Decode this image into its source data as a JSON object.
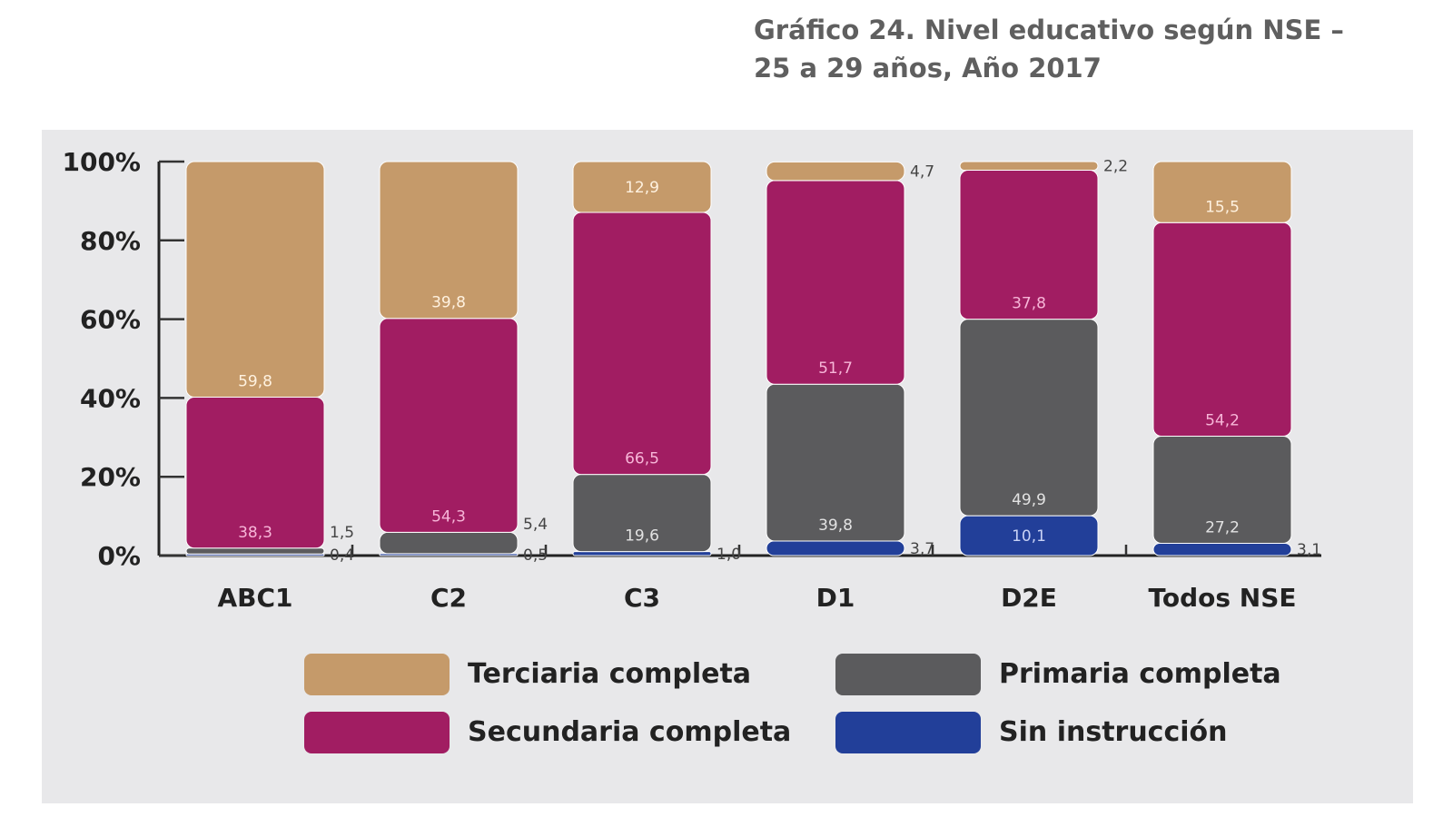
{
  "title_line1": "Gráfico 24. Nivel educativo según NSE –",
  "title_line2": "25 a 29 años, Año 2017",
  "chart_data": {
    "type": "bar",
    "stacked": true,
    "title": "Gráfico 24. Nivel educativo según NSE – 25 a 29 años, Año 2017",
    "xlabel": "",
    "ylabel": "",
    "ylim": [
      0,
      100
    ],
    "yticks": [
      "0%",
      "20%",
      "40%",
      "60%",
      "80%",
      "100%"
    ],
    "ytick_values": [
      0,
      20,
      40,
      60,
      80,
      100
    ],
    "grid": false,
    "legend_position": "bottom",
    "categories": [
      "ABC1",
      "C2",
      "C3",
      "D1",
      "D2E",
      "Todos NSE"
    ],
    "series": [
      {
        "name": "Sin instrucción",
        "color": "#223f99",
        "values": [
          0.4,
          0.5,
          1.0,
          3.7,
          10.1,
          3.1
        ],
        "labels": [
          "0,4",
          "0,5",
          "1,0",
          "3,7",
          "10,1",
          "3,1"
        ]
      },
      {
        "name": "Primaria completa",
        "color": "#5b5b5d",
        "values": [
          1.5,
          5.4,
          19.6,
          39.8,
          49.9,
          27.2
        ],
        "labels": [
          "1,5",
          "5,4",
          "19,6",
          "39,8",
          "49,9",
          "27,2"
        ]
      },
      {
        "name": "Secundaria completa",
        "color": "#a11d62",
        "values": [
          38.3,
          54.3,
          66.5,
          51.7,
          37.8,
          54.2
        ],
        "labels": [
          "38,3",
          "54,3",
          "66,5",
          "51,7",
          "37,8",
          "54,2"
        ]
      },
      {
        "name": "Terciaria completa",
        "color": "#c59a6a",
        "values": [
          59.8,
          39.8,
          12.9,
          4.7,
          2.2,
          15.5
        ],
        "labels": [
          "59,8",
          "39,8",
          "12,9",
          "4,7",
          "2,2",
          "15,5"
        ]
      }
    ]
  },
  "legend": [
    {
      "label": "Terciaria completa",
      "color": "#c59a6a"
    },
    {
      "label": "Primaria completa",
      "color": "#5b5b5d"
    },
    {
      "label": "Secundaria completa",
      "color": "#a11d62"
    },
    {
      "label": "Sin instrucción",
      "color": "#223f99"
    }
  ]
}
